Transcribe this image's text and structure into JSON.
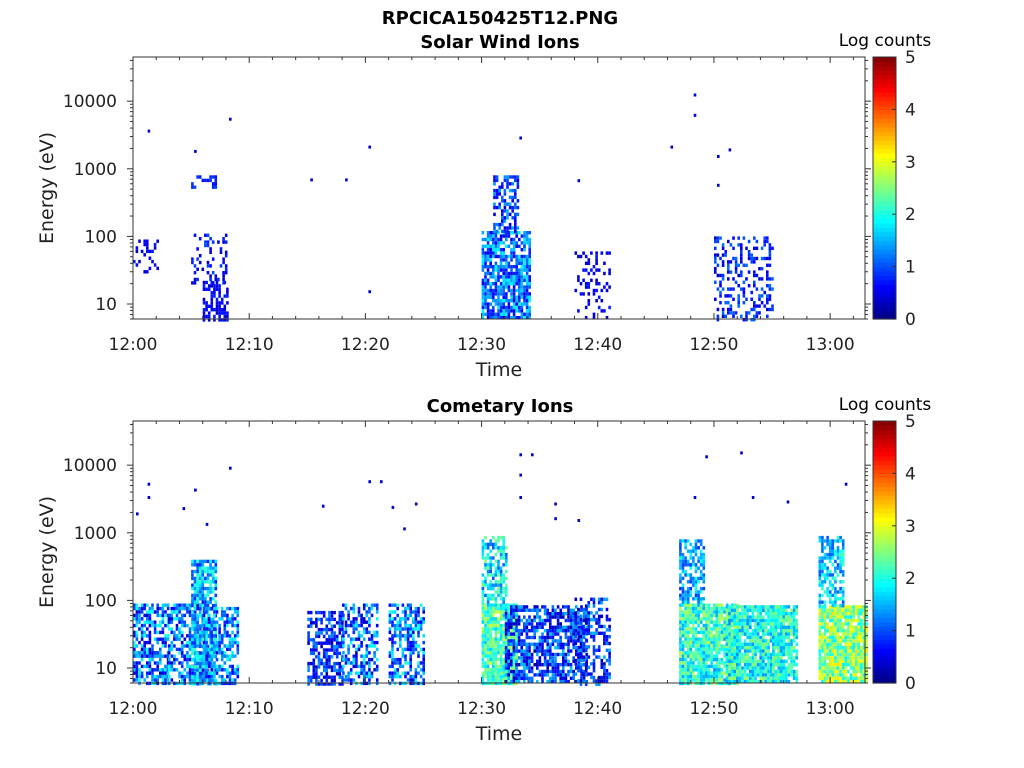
{
  "figure_title": "RPCICA150425T12.PNG",
  "chart_data": [
    {
      "type": "heatmap",
      "title": "Solar Wind Ions",
      "xlabel": "Time",
      "ylabel": "Energy (eV)",
      "x_ticks": [
        "12:00",
        "12:10",
        "12:20",
        "12:30",
        "12:40",
        "12:50",
        "13:00"
      ],
      "xlim": [
        "12:00",
        "13:03"
      ],
      "y_scale": "log",
      "y_ticks": [
        "10",
        "100",
        "1000",
        "10000"
      ],
      "ylim": [
        6,
        45000
      ],
      "colorbar": {
        "label": "Log counts",
        "ticks": [
          "0",
          "1",
          "2",
          "3",
          "4",
          "5"
        ],
        "range": [
          0,
          5
        ],
        "colormap": "jet"
      },
      "grid": false,
      "clusters": [
        {
          "t_start": "12:00",
          "t_end": "12:01",
          "e_min": 30,
          "e_max": 90,
          "level_min": 0.3,
          "level_max": 0.8,
          "density": 0.3
        },
        {
          "t_start": "12:05",
          "t_end": "12:07",
          "e_min": 20,
          "e_max": 110,
          "level_min": 0.3,
          "level_max": 1.0,
          "density": 0.3
        },
        {
          "t_start": "12:06",
          "t_end": "12:07",
          "e_min": 6,
          "e_max": 22,
          "level_min": 0.3,
          "level_max": 0.8,
          "density": 0.5
        },
        {
          "t_start": "12:05",
          "t_end": "12:06",
          "e_min": 520,
          "e_max": 800,
          "level_min": 0.6,
          "level_max": 1.0,
          "density": 0.6
        },
        {
          "t_start": "12:30",
          "t_end": "12:33",
          "e_min": 6,
          "e_max": 120,
          "level_min": 0.5,
          "level_max": 1.9,
          "density": 0.8
        },
        {
          "t_start": "12:31",
          "t_end": "12:32",
          "e_min": 120,
          "e_max": 800,
          "level_min": 0.4,
          "level_max": 1.5,
          "density": 0.6
        },
        {
          "t_start": "12:38",
          "t_end": "12:40",
          "e_min": 6,
          "e_max": 60,
          "level_min": 0.3,
          "level_max": 0.8,
          "density": 0.25
        },
        {
          "t_start": "12:50",
          "t_end": "12:54",
          "e_min": 6,
          "e_max": 100,
          "level_min": 0.3,
          "level_max": 1.2,
          "density": 0.35
        }
      ],
      "points": [
        {
          "t": "12:01",
          "e": 3800
        },
        {
          "t": "12:05",
          "e": 1900
        },
        {
          "t": "12:08",
          "e": 5700
        },
        {
          "t": "12:15",
          "e": 720
        },
        {
          "t": "12:18",
          "e": 720
        },
        {
          "t": "12:20",
          "e": 2200
        },
        {
          "t": "12:20",
          "e": 16
        },
        {
          "t": "12:33",
          "e": 3000
        },
        {
          "t": "12:38",
          "e": 700
        },
        {
          "t": "12:46",
          "e": 2200
        },
        {
          "t": "12:48",
          "e": 13000
        },
        {
          "t": "12:48",
          "e": 6500
        },
        {
          "t": "12:50",
          "e": 1600
        },
        {
          "t": "12:50",
          "e": 600
        },
        {
          "t": "12:51",
          "e": 2000
        }
      ]
    },
    {
      "type": "heatmap",
      "title": "Cometary Ions",
      "xlabel": "Time",
      "ylabel": "Energy (eV)",
      "x_ticks": [
        "12:00",
        "12:10",
        "12:20",
        "12:30",
        "12:40",
        "12:50",
        "13:00"
      ],
      "xlim": [
        "12:00",
        "13:03"
      ],
      "y_scale": "log",
      "y_ticks": [
        "10",
        "100",
        "1000",
        "10000"
      ],
      "ylim": [
        6,
        45000
      ],
      "colorbar": {
        "label": "Log counts",
        "ticks": [
          "0",
          "1",
          "2",
          "3",
          "4",
          "5"
        ],
        "range": [
          0,
          5
        ],
        "colormap": "jet"
      },
      "grid": false,
      "clusters": [
        {
          "t_start": "12:00",
          "t_end": "12:02",
          "e_min": 6,
          "e_max": 90,
          "level_min": 0.3,
          "level_max": 2.0,
          "density": 0.65
        },
        {
          "t_start": "12:03",
          "t_end": "12:05",
          "e_min": 6,
          "e_max": 90,
          "level_min": 0.3,
          "level_max": 2.0,
          "density": 0.6
        },
        {
          "t_start": "12:05",
          "t_end": "12:06",
          "e_min": 6,
          "e_max": 400,
          "level_min": 0.8,
          "level_max": 2.2,
          "density": 0.75
        },
        {
          "t_start": "12:06",
          "t_end": "12:08",
          "e_min": 6,
          "e_max": 80,
          "level_min": 0.5,
          "level_max": 2.0,
          "density": 0.65
        },
        {
          "t_start": "12:15",
          "t_end": "12:17",
          "e_min": 6,
          "e_max": 70,
          "level_min": 0.2,
          "level_max": 1.4,
          "density": 0.6
        },
        {
          "t_start": "12:18",
          "t_end": "12:20",
          "e_min": 6,
          "e_max": 90,
          "level_min": 0.3,
          "level_max": 1.9,
          "density": 0.55
        },
        {
          "t_start": "12:22",
          "t_end": "12:24",
          "e_min": 6,
          "e_max": 90,
          "level_min": 0.4,
          "level_max": 2.1,
          "density": 0.6
        },
        {
          "t_start": "12:30",
          "t_end": "12:32",
          "e_min": 6,
          "e_max": 90,
          "level_min": 1.6,
          "level_max": 2.9,
          "density": 0.95
        },
        {
          "t_start": "12:30",
          "t_end": "12:31",
          "e_min": 90,
          "e_max": 900,
          "level_min": 1.0,
          "level_max": 2.5,
          "density": 0.7
        },
        {
          "t_start": "12:32",
          "t_end": "12:38",
          "e_min": 6,
          "e_max": 85,
          "level_min": 0.2,
          "level_max": 1.6,
          "density": 0.7
        },
        {
          "t_start": "12:38",
          "t_end": "12:40",
          "e_min": 6,
          "e_max": 110,
          "level_min": 0.2,
          "level_max": 1.5,
          "density": 0.5
        },
        {
          "t_start": "12:47",
          "t_end": "12:51",
          "e_min": 6,
          "e_max": 90,
          "level_min": 1.4,
          "level_max": 2.8,
          "density": 0.9
        },
        {
          "t_start": "12:47",
          "t_end": "12:48",
          "e_min": 90,
          "e_max": 800,
          "level_min": 0.8,
          "level_max": 2.0,
          "density": 0.6
        },
        {
          "t_start": "12:51",
          "t_end": "12:55",
          "e_min": 6,
          "e_max": 85,
          "level_min": 1.3,
          "level_max": 2.7,
          "density": 0.9
        },
        {
          "t_start": "12:55",
          "t_end": "12:56",
          "e_min": 6,
          "e_max": 85,
          "level_min": 1.4,
          "level_max": 2.6,
          "density": 0.9
        },
        {
          "t_start": "12:59",
          "t_end": "13:02",
          "e_min": 6,
          "e_max": 85,
          "level_min": 1.8,
          "level_max": 3.3,
          "density": 0.95
        },
        {
          "t_start": "12:59",
          "t_end": "13:00",
          "e_min": 85,
          "e_max": 900,
          "level_min": 1.0,
          "level_max": 2.2,
          "density": 0.65
        }
      ],
      "points": [
        {
          "t": "12:00",
          "e": 2000
        },
        {
          "t": "12:01",
          "e": 3500
        },
        {
          "t": "12:01",
          "e": 5500
        },
        {
          "t": "12:04",
          "e": 2400
        },
        {
          "t": "12:05",
          "e": 4500
        },
        {
          "t": "12:06",
          "e": 1400
        },
        {
          "t": "12:08",
          "e": 9500
        },
        {
          "t": "12:16",
          "e": 2600
        },
        {
          "t": "12:20",
          "e": 6000
        },
        {
          "t": "12:21",
          "e": 6000
        },
        {
          "t": "12:22",
          "e": 2500
        },
        {
          "t": "12:23",
          "e": 1200
        },
        {
          "t": "12:24",
          "e": 2800
        },
        {
          "t": "12:33",
          "e": 15000
        },
        {
          "t": "12:33",
          "e": 7500
        },
        {
          "t": "12:34",
          "e": 15000
        },
        {
          "t": "12:33",
          "e": 3500
        },
        {
          "t": "12:36",
          "e": 2800
        },
        {
          "t": "12:36",
          "e": 1700
        },
        {
          "t": "12:38",
          "e": 1600
        },
        {
          "t": "12:48",
          "e": 3500
        },
        {
          "t": "12:49",
          "e": 14000
        },
        {
          "t": "12:52",
          "e": 16000
        },
        {
          "t": "12:53",
          "e": 3500
        },
        {
          "t": "12:56",
          "e": 3000
        },
        {
          "t": "13:01",
          "e": 5500
        }
      ]
    }
  ]
}
